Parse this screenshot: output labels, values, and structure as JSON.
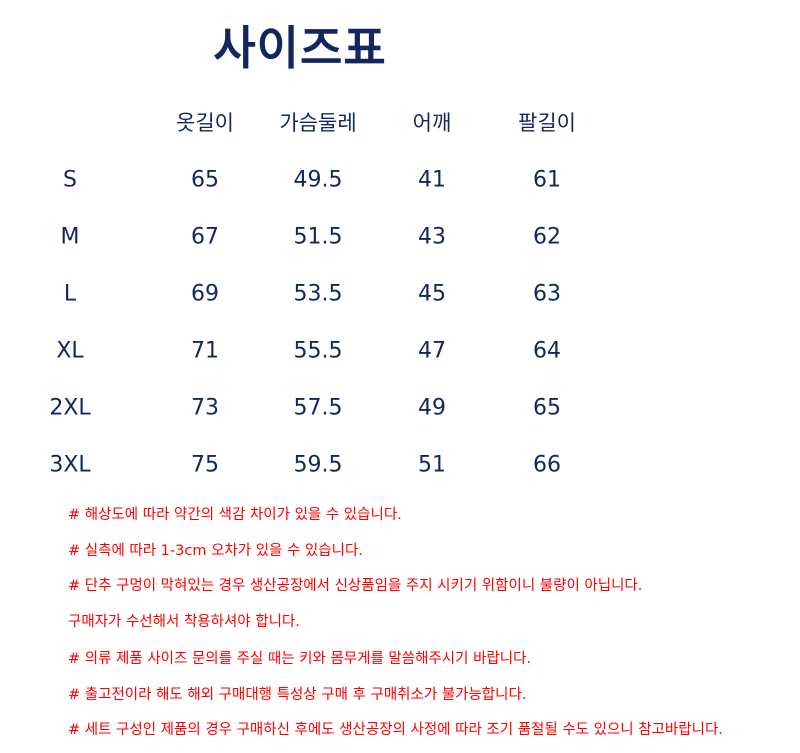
{
  "title": "사이즈표",
  "colors": {
    "title": "#13265e",
    "table_text": "#13265e",
    "notes": "#ff0000"
  },
  "table": {
    "headers": [
      "",
      "옷길이",
      "가슴둘레",
      "어깨",
      "팔길이"
    ],
    "rows": [
      [
        "S",
        "65",
        "49.5",
        "41",
        "61"
      ],
      [
        "M",
        "67",
        "51.5",
        "43",
        "62"
      ],
      [
        "L",
        "69",
        "53.5",
        "45",
        "63"
      ],
      [
        "XL",
        "71",
        "55.5",
        "47",
        "64"
      ],
      [
        "2XL",
        "73",
        "57.5",
        "49",
        "65"
      ],
      [
        "3XL",
        "75",
        "59.5",
        "51",
        "66"
      ]
    ]
  },
  "notes": [
    "# 해상도에 따라 약간의 색감 차이가 있을 수 있습니다.",
    "# 실측에 따라 1-3cm 오차가 있을 수 있습니다.",
    "# 단추 구멍이 막혀있는 경우 생산공장에서 신상품임을 주지 시키기 위함이니 불량이 아닙니다.",
    "구매자가 수선해서 착용하셔야 합니다.",
    "# 의류 제품 사이즈 문의를 주실 때는 키와 몸무게를 말씀해주시기 바랍니다.",
    "# 출고전이라 해도 해외 구매대행 특성상 구매 후 구매취소가 불가능합니다.",
    "# 세트 구성인 제품의 경우 구매하신 후에도 생산공장의 사정에 따라 조기 품절될 수도 있으니 참고바랍니다."
  ]
}
